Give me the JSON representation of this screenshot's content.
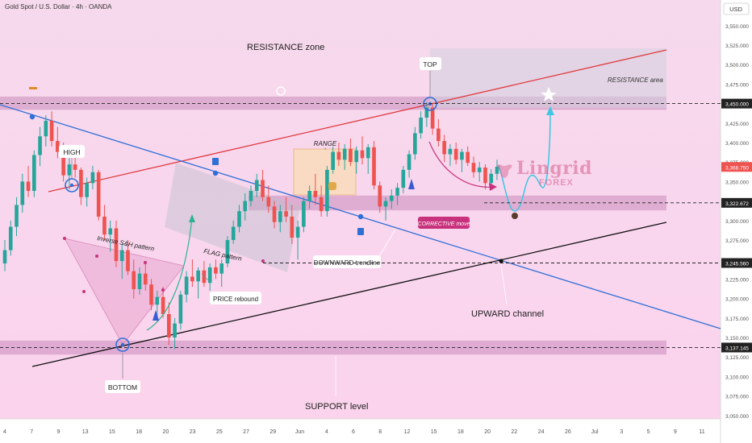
{
  "header": {
    "symbol_line": "Gold Spot / U.S. Dollar · 4h · OANDA"
  },
  "brand": {
    "name": "Lingrid",
    "sub": "FOREX"
  },
  "colors": {
    "up": "#26a69a",
    "down": "#ef5350",
    "resistance_line": "#e0393e",
    "downtrend": "#2f6fd6",
    "upchannel": "#111111",
    "zone": "#b56aa6",
    "projection": "#3fc6e0",
    "bg_top": "#f6d9ec",
    "bg_bottom": "#fbd3ec"
  },
  "chart_data": {
    "type": "candlestick",
    "currency": "USD",
    "y_axis_ticks": [
      3050,
      3075,
      3100,
      3125,
      3150,
      3175,
      3200,
      3225,
      3250,
      3275,
      3300,
      3325,
      3350,
      3375,
      3400,
      3425,
      3450,
      3475,
      3500,
      3525,
      3550
    ],
    "y_tick_labels": [
      "3,050.000",
      "3,075.000",
      "3,100.000",
      "3,125.000",
      "3,150.000",
      "3,175.000",
      "3,200.000",
      "3,225.000",
      "3,250.000",
      "3,275.000",
      "3,300.000",
      "3,325.000",
      "3,350.000",
      "3,375.000",
      "3,400.000",
      "3,425.000",
      "3,450.000",
      "3,475.000",
      "3,500.000",
      "3,525.000",
      "3,550.000"
    ],
    "x_axis_labels": [
      "4",
      "7",
      "9",
      "13",
      "15",
      "18",
      "20",
      "23",
      "25",
      "27",
      "29",
      "Jun",
      "4",
      "6",
      "8",
      "12",
      "15",
      "18",
      "20",
      "22",
      "24",
      "26",
      "Jul",
      "3",
      "5",
      "9",
      "11"
    ],
    "price_marks": [
      {
        "value": 3450.0,
        "label": "3,450.000",
        "style": "dark"
      },
      {
        "value": 3368.75,
        "label": "3,368.750",
        "style": "red"
      },
      {
        "value": 3322.672,
        "label": "3,322.672",
        "style": "dark"
      },
      {
        "value": 3245.56,
        "label": "3,245.560",
        "style": "dark"
      },
      {
        "value": 3137.145,
        "label": "3,137.145",
        "style": "dark"
      }
    ],
    "zones": [
      {
        "name": "resistance",
        "from": 3442,
        "to": 3459
      },
      {
        "name": "mid-support",
        "from": 3313,
        "to": 3332
      },
      {
        "name": "support",
        "from": 3128,
        "to": 3146
      }
    ],
    "annotations": [
      "RESISTANCE zone",
      "RESISTANCE area",
      "TOP",
      "HIGH",
      "RANGE",
      "Inverse S&H pattern",
      "FLAG pattern",
      "PRICE rebound",
      "DOWNWARD trendline",
      "CORRECTIVE move",
      "UPWARD channel",
      "BOTTOM",
      "SUPPORT level"
    ],
    "candles": [
      [
        3245,
        3275,
        3235,
        3262
      ],
      [
        3262,
        3300,
        3255,
        3292
      ],
      [
        3292,
        3330,
        3280,
        3320
      ],
      [
        3320,
        3360,
        3310,
        3350
      ],
      [
        3350,
        3370,
        3330,
        3338
      ],
      [
        3338,
        3390,
        3330,
        3384
      ],
      [
        3384,
        3420,
        3370,
        3408
      ],
      [
        3408,
        3435,
        3395,
        3428
      ],
      [
        3428,
        3440,
        3395,
        3402
      ],
      [
        3402,
        3420,
        3380,
        3388
      ],
      [
        3388,
        3400,
        3350,
        3358
      ],
      [
        3358,
        3380,
        3340,
        3372
      ],
      [
        3372,
        3390,
        3355,
        3365
      ],
      [
        3365,
        3368,
        3320,
        3330
      ],
      [
        3330,
        3355,
        3318,
        3348
      ],
      [
        3348,
        3370,
        3340,
        3362
      ],
      [
        3362,
        3365,
        3300,
        3305
      ],
      [
        3305,
        3320,
        3275,
        3282
      ],
      [
        3282,
        3300,
        3260,
        3290
      ],
      [
        3290,
        3300,
        3240,
        3248
      ],
      [
        3248,
        3270,
        3225,
        3262
      ],
      [
        3262,
        3275,
        3230,
        3235
      ],
      [
        3235,
        3250,
        3200,
        3212
      ],
      [
        3212,
        3240,
        3205,
        3232
      ],
      [
        3232,
        3248,
        3210,
        3218
      ],
      [
        3218,
        3225,
        3185,
        3192
      ],
      [
        3192,
        3210,
        3170,
        3202
      ],
      [
        3202,
        3215,
        3175,
        3180
      ],
      [
        3180,
        3195,
        3140,
        3150
      ],
      [
        3150,
        3175,
        3135,
        3168
      ],
      [
        3168,
        3210,
        3160,
        3205
      ],
      [
        3205,
        3235,
        3195,
        3228
      ],
      [
        3228,
        3250,
        3215,
        3222
      ],
      [
        3222,
        3240,
        3200,
        3236
      ],
      [
        3236,
        3248,
        3215,
        3220
      ],
      [
        3220,
        3245,
        3210,
        3240
      ],
      [
        3240,
        3250,
        3225,
        3232
      ],
      [
        3232,
        3250,
        3215,
        3245
      ],
      [
        3245,
        3280,
        3240,
        3275
      ],
      [
        3275,
        3300,
        3270,
        3292
      ],
      [
        3292,
        3320,
        3285,
        3312
      ],
      [
        3312,
        3335,
        3300,
        3325
      ],
      [
        3325,
        3345,
        3318,
        3338
      ],
      [
        3338,
        3360,
        3330,
        3352
      ],
      [
        3352,
        3365,
        3325,
        3330
      ],
      [
        3330,
        3345,
        3310,
        3318
      ],
      [
        3318,
        3325,
        3290,
        3298
      ],
      [
        3298,
        3320,
        3285,
        3312
      ],
      [
        3312,
        3330,
        3298,
        3305
      ],
      [
        3305,
        3320,
        3270,
        3278
      ],
      [
        3278,
        3300,
        3250,
        3292
      ],
      [
        3292,
        3330,
        3285,
        3325
      ],
      [
        3325,
        3345,
        3315,
        3338
      ],
      [
        3338,
        3360,
        3320,
        3330
      ],
      [
        3330,
        3345,
        3305,
        3312
      ],
      [
        3312,
        3370,
        3305,
        3365
      ],
      [
        3365,
        3395,
        3360,
        3388
      ],
      [
        3388,
        3400,
        3370,
        3378
      ],
      [
        3378,
        3398,
        3365,
        3392
      ],
      [
        3392,
        3405,
        3370,
        3375
      ],
      [
        3375,
        3395,
        3360,
        3390
      ],
      [
        3390,
        3408,
        3372,
        3380
      ],
      [
        3380,
        3398,
        3360,
        3394
      ],
      [
        3394,
        3402,
        3340,
        3345
      ],
      [
        3345,
        3350,
        3310,
        3318
      ],
      [
        3318,
        3330,
        3300,
        3325
      ],
      [
        3325,
        3340,
        3315,
        3332
      ],
      [
        3332,
        3348,
        3320,
        3342
      ],
      [
        3342,
        3370,
        3335,
        3365
      ],
      [
        3365,
        3390,
        3355,
        3385
      ],
      [
        3385,
        3420,
        3378,
        3412
      ],
      [
        3412,
        3440,
        3405,
        3432
      ],
      [
        3432,
        3452,
        3420,
        3445
      ],
      [
        3445,
        3450,
        3410,
        3418
      ],
      [
        3418,
        3430,
        3395,
        3402
      ],
      [
        3402,
        3410,
        3375,
        3385
      ],
      [
        3385,
        3398,
        3370,
        3392
      ],
      [
        3392,
        3400,
        3372,
        3378
      ],
      [
        3378,
        3392,
        3362,
        3388
      ],
      [
        3388,
        3395,
        3370,
        3374
      ],
      [
        3374,
        3382,
        3355,
        3362
      ],
      [
        3362,
        3375,
        3350,
        3368
      ],
      [
        3368,
        3372,
        3340,
        3348
      ],
      [
        3348,
        3366,
        3340,
        3360
      ],
      [
        3360,
        3378,
        3352,
        3369
      ]
    ]
  }
}
